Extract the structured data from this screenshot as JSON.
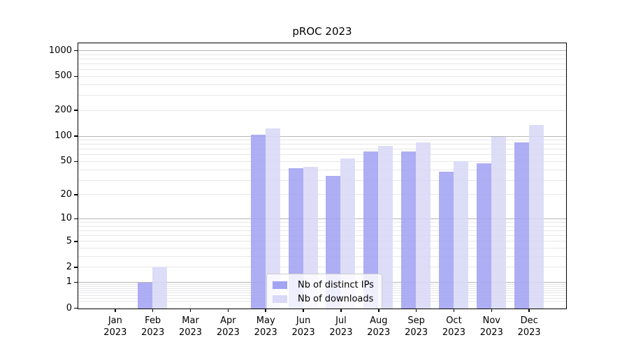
{
  "chart_data": {
    "type": "bar",
    "title": "pROC 2023",
    "categories": [
      "Jan",
      "Feb",
      "Mar",
      "Apr",
      "May",
      "Jun",
      "Jul",
      "Aug",
      "Sep",
      "Oct",
      "Nov",
      "Dec"
    ],
    "year": "2023",
    "series": [
      {
        "name": "Nb of distinct IPs",
        "color": "#a3a3f2",
        "values": [
          0,
          1,
          0,
          0,
          105,
          42,
          34,
          66,
          66,
          38,
          48,
          85
        ]
      },
      {
        "name": "Nb of downloads",
        "color": "#d8d8f7",
        "values": [
          0,
          2,
          0,
          0,
          125,
          44,
          55,
          78,
          85,
          51,
          100,
          137
        ]
      }
    ],
    "yscale": "log1p",
    "y_ticks": [
      0,
      1,
      2,
      5,
      10,
      20,
      50,
      100,
      200,
      500,
      1000
    ],
    "ylim": [
      0,
      1000
    ],
    "grid": true,
    "legend_position": "lower center",
    "colors": {
      "background": "#ffffff",
      "axis": "#000000",
      "text": "#000000",
      "major_grid": "#b5b5b5",
      "minor_grid": "#e7e7ea"
    }
  }
}
